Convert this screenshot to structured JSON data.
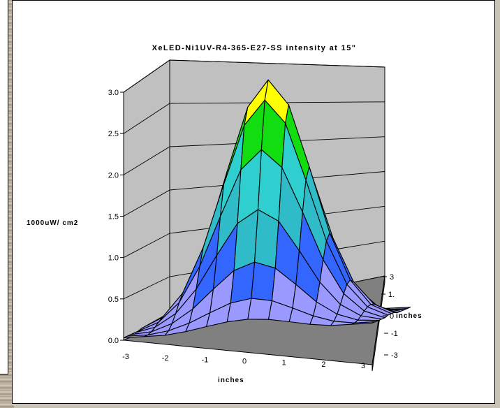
{
  "chart_data": {
    "type": "surface",
    "title": "XeLED-Ni1UV-R4-365-E27-SS intensity at 15\"",
    "xlabel": "inches",
    "ylabel": "1000uW/ cm2",
    "depth_label": "inches",
    "x": [
      -3,
      -2.5,
      -2,
      -1.5,
      -1,
      -0.5,
      0,
      0.5,
      1,
      1.5,
      2,
      2.5,
      3
    ],
    "x_tick_labels": [
      "-3",
      "-2",
      "-1",
      "0",
      "1",
      "2",
      "3"
    ],
    "y_tick_labels": [
      "-3",
      "-1",
      "0",
      "1.",
      "3"
    ],
    "z_tick_labels": [
      "0.0",
      "0.5",
      "1.0",
      "1.5",
      "2.0",
      "2.5",
      "3.0"
    ],
    "zlim": [
      0,
      3
    ],
    "peak_value": 2.95,
    "color_bands": [
      {
        "range": [
          0,
          0.5
        ],
        "color": "#9999ff"
      },
      {
        "range": [
          0.5,
          1.0
        ],
        "color": "#3366ff"
      },
      {
        "range": [
          1.0,
          1.5
        ],
        "color": "#2fbcc8"
      },
      {
        "range": [
          1.5,
          2.0
        ],
        "color": "#2fcfcf"
      },
      {
        "range": [
          2.0,
          2.5
        ],
        "color": "#11dd11"
      },
      {
        "range": [
          2.5,
          2.8
        ],
        "color": "#ffff00"
      },
      {
        "range": [
          2.8,
          3.0
        ],
        "color": "#ff9900"
      }
    ],
    "wall_color": "#c0c0c0",
    "gridlines": true
  }
}
